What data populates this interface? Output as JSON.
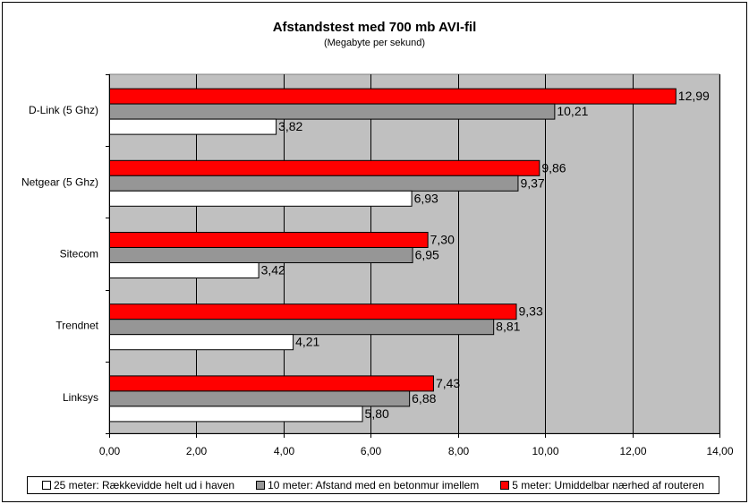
{
  "chart_data": {
    "type": "bar",
    "orientation": "horizontal",
    "title": "Afstandstest med 700 mb AVI-fil",
    "subtitle": "(Megabyte per sekund)",
    "categories": [
      "D-Link (5 Ghz)",
      "Netgear (5 Ghz)",
      "Sitecom",
      "Trendnet",
      "Linksys"
    ],
    "series": [
      {
        "name": "5 meter: Umiddelbar nærhed af routeren",
        "color": "#ff0000",
        "values": [
          12.99,
          9.86,
          7.3,
          9.33,
          7.43
        ],
        "labels": [
          "12,99",
          "9,86",
          "7,30",
          "9,33",
          "7,43"
        ]
      },
      {
        "name": "10 meter: Afstand med en betonmur imellem",
        "color": "#969696",
        "values": [
          10.21,
          9.37,
          6.95,
          8.81,
          6.88
        ],
        "labels": [
          "10,21",
          "9,37",
          "6,95",
          "8,81",
          "6,88"
        ]
      },
      {
        "name": "25 meter: Rækkevidde helt ud i haven",
        "color": "#ffffff",
        "values": [
          3.82,
          6.93,
          3.42,
          4.21,
          5.8
        ],
        "labels": [
          "3,82",
          "6,93",
          "3,42",
          "4,21",
          "5,80"
        ]
      }
    ],
    "legend_order": [
      2,
      1,
      0
    ],
    "xlim": [
      0,
      14
    ],
    "xticks": [
      0,
      2,
      4,
      6,
      8,
      10,
      12,
      14
    ],
    "xtick_labels": [
      "0,00",
      "2,00",
      "4,00",
      "6,00",
      "8,00",
      "10,00",
      "12,00",
      "14,00"
    ],
    "plot_background": "#c0c0c0",
    "grid": true,
    "legend_position": "bottom"
  }
}
